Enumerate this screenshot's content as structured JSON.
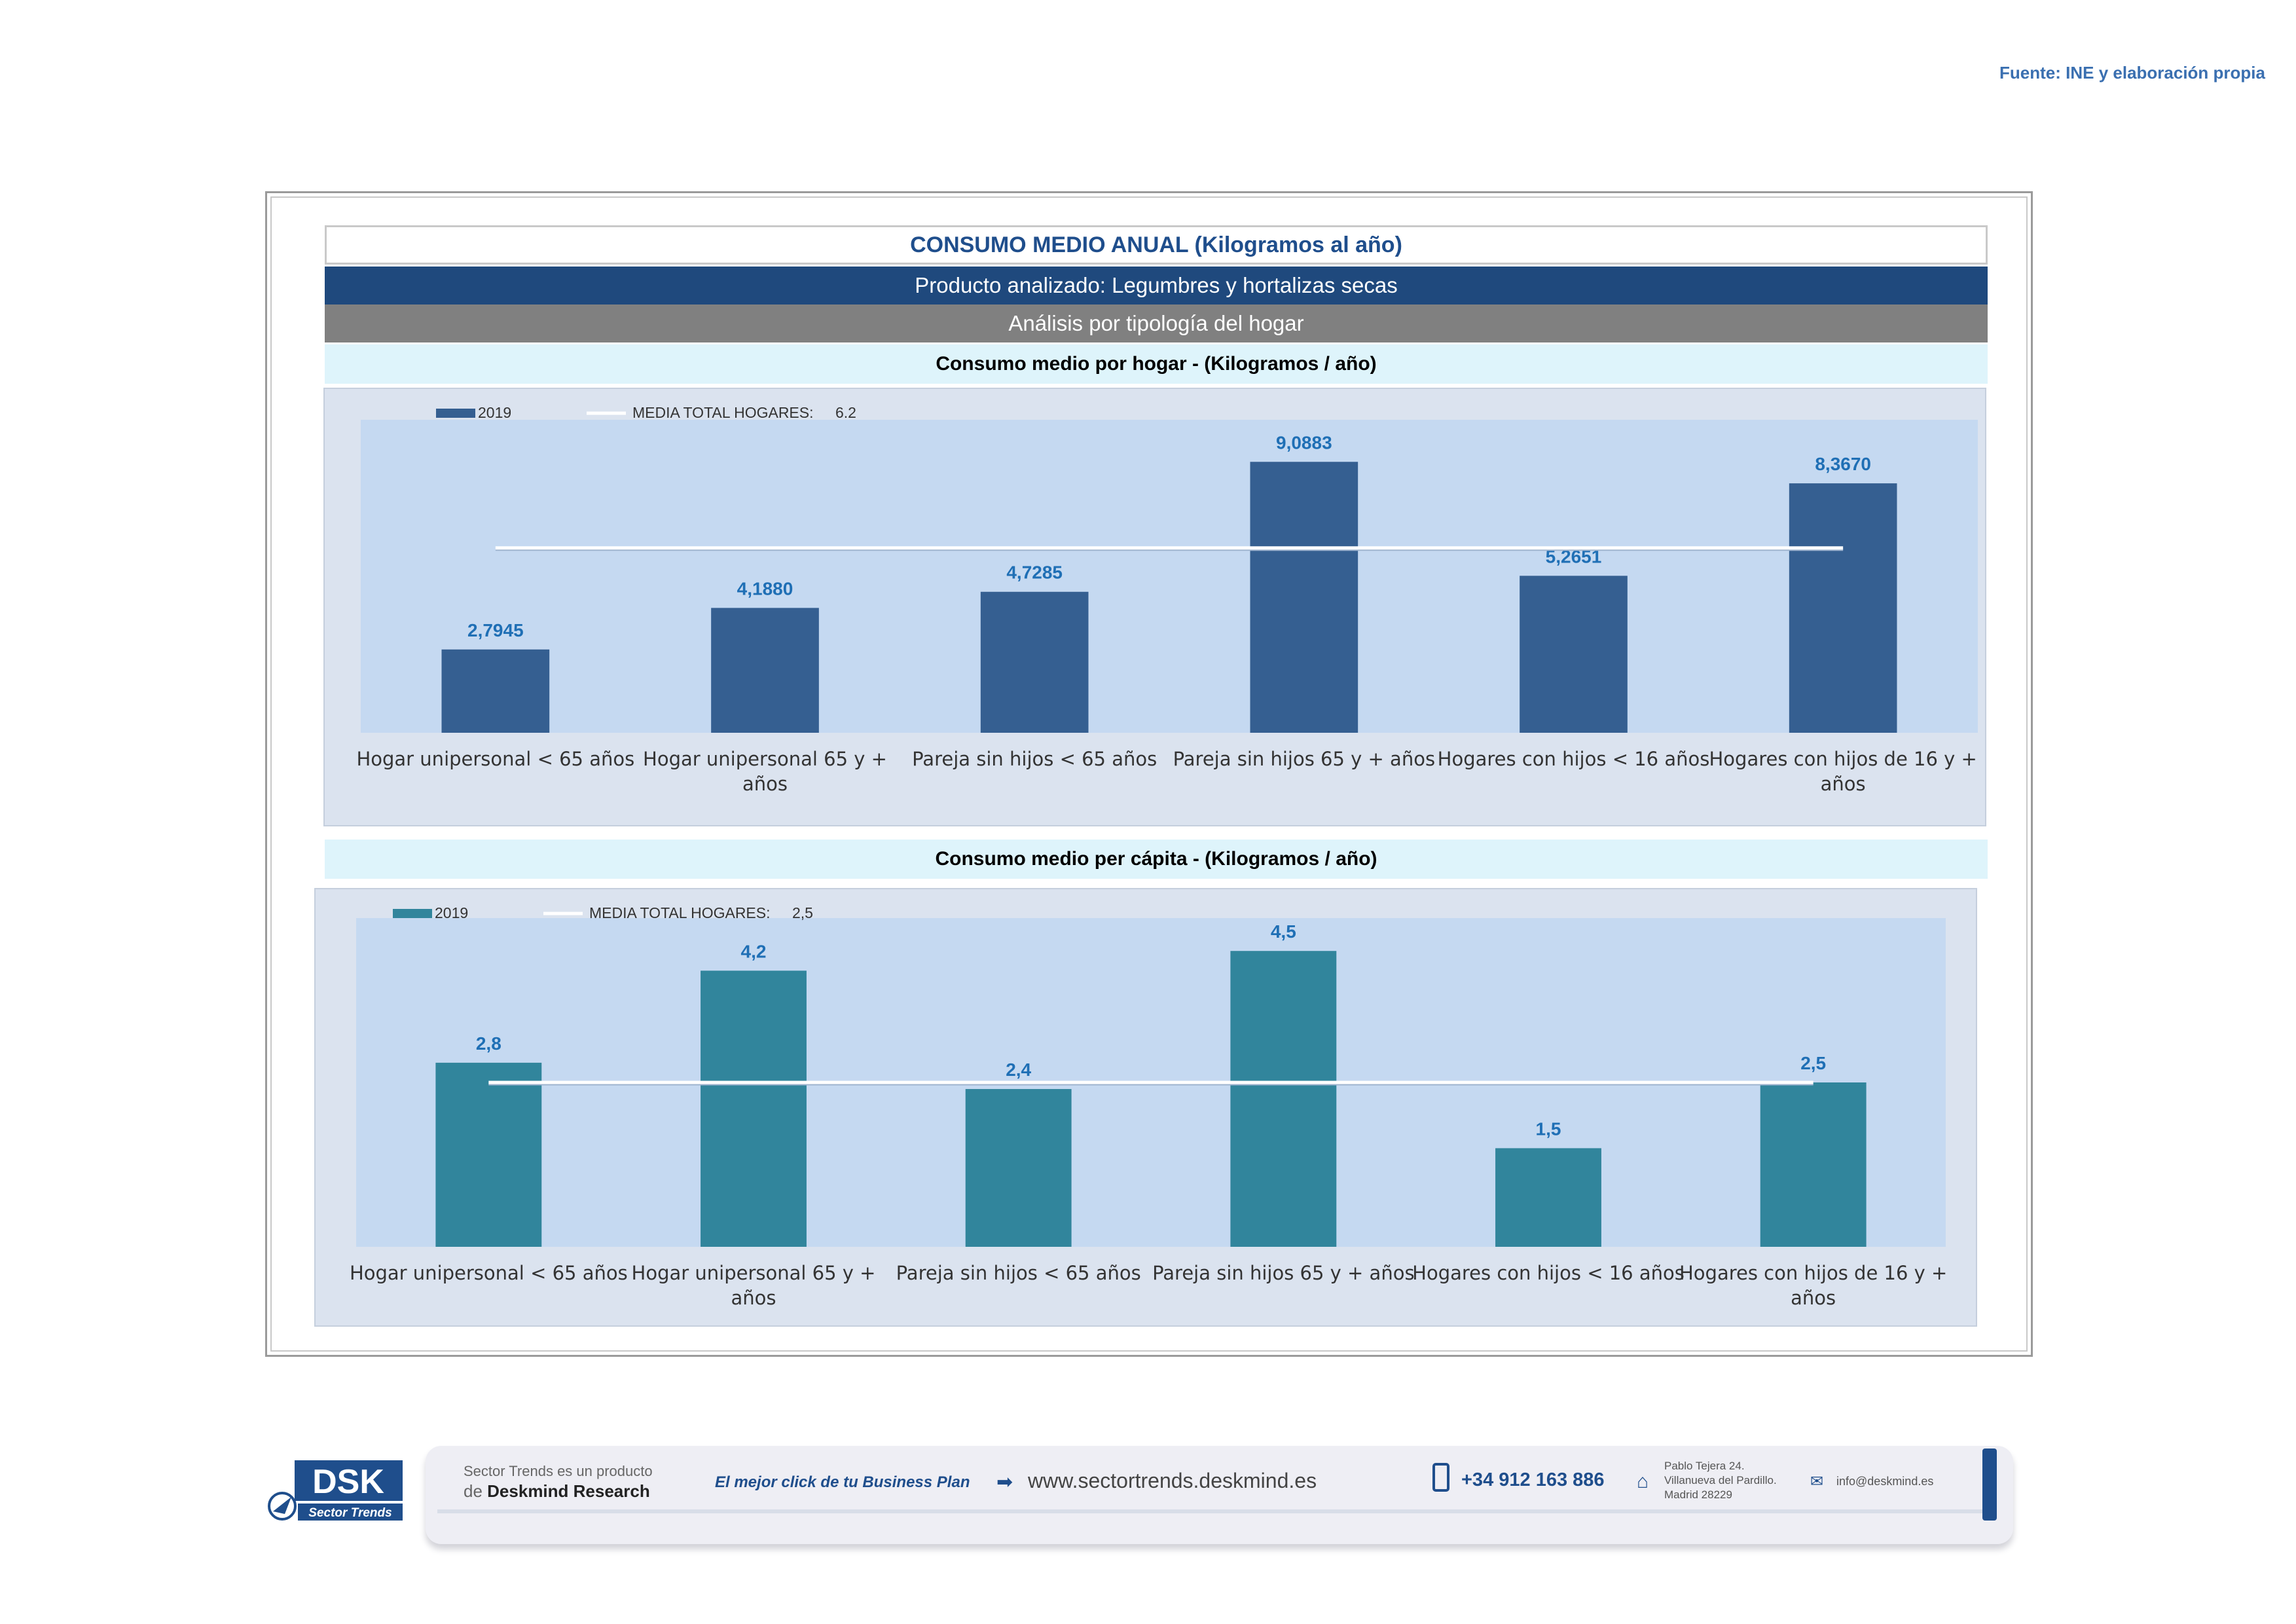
{
  "source_note": "Fuente: INE y elaboración propia",
  "header": {
    "title": "CONSUMO MEDIO ANUAL (Kilogramos al año)",
    "product": "Producto analizado: Legumbres y hortalizas secas",
    "analysis": "Análisis por tipología del hogar"
  },
  "colors": {
    "bar1": "#355f91",
    "bar2": "#31859c",
    "plot_bg": "#c5d9f1",
    "avg_line": "#ffffff",
    "value_label": "#1f6fb5"
  },
  "chart_data": [
    {
      "type": "bar",
      "title": "Consumo medio por hogar -  (Kilogramos / año)",
      "legend": {
        "series_label": "2019",
        "avg_label": "MEDIA TOTAL  HOGARES:",
        "avg_value": "6.2",
        "position": "top-left"
      },
      "categories": [
        "Hogar unipersonal < 65 años",
        "Hogar unipersonal  65 y + años",
        "Pareja sin hijos < 65 años",
        "Pareja sin hijos 65 y + años",
        "Hogares con hijos < 16 años",
        "Hogares con hijos de 16 y + años"
      ],
      "category_lines": [
        [
          "Hogar unipersonal < 65 años"
        ],
        [
          "Hogar unipersonal  65 y +",
          "años"
        ],
        [
          "Pareja sin hijos < 65 años"
        ],
        [
          "Pareja sin hijos 65 y + años"
        ],
        [
          "Hogares con hijos < 16 años"
        ],
        [
          "Hogares con hijos de 16 y +",
          "años"
        ]
      ],
      "series": [
        {
          "name": "2019",
          "values": [
            2.7945,
            4.188,
            4.7285,
            9.0883,
            5.2651,
            8.367
          ]
        }
      ],
      "value_labels": [
        "2,7945",
        "4,1880",
        "4,7285",
        "9,0883",
        "5,2651",
        "8,3670"
      ],
      "average": 6.2,
      "ylim": [
        0,
        10.5
      ],
      "grid": false
    },
    {
      "type": "bar",
      "title": "Consumo medio per cápita -  (Kilogramos / año)",
      "legend": {
        "series_label": "2019",
        "avg_label": "MEDIA TOTAL  HOGARES:",
        "avg_value": "2,5",
        "position": "top-left"
      },
      "categories": [
        "Hogar unipersonal < 65 años",
        "Hogar unipersonal  65 y + años",
        "Pareja sin hijos < 65 años",
        "Pareja sin hijos 65 y + años",
        "Hogares con hijos < 16 años",
        "Hogares con hijos de 16 y + años"
      ],
      "category_lines": [
        [
          "Hogar unipersonal < 65 años"
        ],
        [
          "Hogar unipersonal  65 y +",
          "años"
        ],
        [
          "Pareja sin hijos < 65 años"
        ],
        [
          "Pareja sin hijos 65 y + años"
        ],
        [
          "Hogares con hijos < 16 años"
        ],
        [
          "Hogares con hijos de 16 y +",
          "años"
        ]
      ],
      "series": [
        {
          "name": "2019",
          "values": [
            2.8,
            4.2,
            2.4,
            4.5,
            1.5,
            2.5
          ]
        }
      ],
      "value_labels": [
        "2,8",
        "4,2",
        "2,4",
        "4,5",
        "1,5",
        "2,5"
      ],
      "average": 2.5,
      "ylim": [
        0,
        5.0
      ],
      "grid": false
    }
  ],
  "footer": {
    "logo_text": "DSK",
    "logo_sub": "Sector Trends",
    "product_line1": "Sector Trends es un producto",
    "product_line2_prefix": "de ",
    "product_line2_brand": "Deskmind Research",
    "slogan": "El mejor click de tu Business Plan",
    "website": "www.sectortrends.deskmind.es",
    "phone": "+34 912 163 886",
    "address_line1": "Pablo Tejera 24.",
    "address_line2": "Villanueva del Pardillo.",
    "address_line3": "Madrid 28229",
    "email": "info@deskmind.es"
  }
}
